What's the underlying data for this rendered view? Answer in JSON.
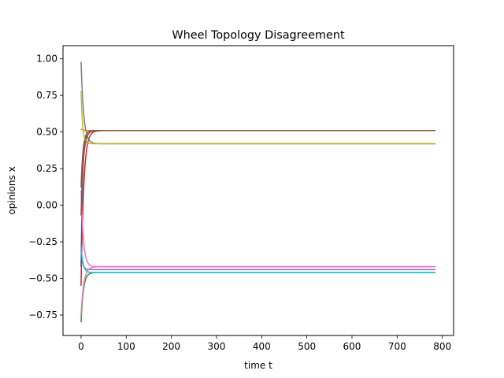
{
  "chart_data": {
    "type": "line",
    "title": "Wheel Topology Disagreement",
    "xlabel": "time t",
    "ylabel": "opinions x",
    "xlim": [
      -40,
      825
    ],
    "ylim": [
      -0.89,
      1.09
    ],
    "xticks": [
      0,
      100,
      200,
      300,
      400,
      500,
      600,
      700,
      800
    ],
    "yticks": [
      -0.75,
      -0.5,
      -0.25,
      0.0,
      0.25,
      0.5,
      0.75,
      1.0
    ],
    "xtick_labels": [
      "0",
      "100",
      "200",
      "300",
      "400",
      "500",
      "600",
      "700",
      "800"
    ],
    "ytick_labels": [
      "−0.75",
      "−0.50",
      "−0.25",
      "0.00",
      "0.25",
      "0.50",
      "0.75",
      "1.00"
    ],
    "grid": false,
    "t_end": 785,
    "series": [
      {
        "color": "#1f77b4",
        "start": -0.42,
        "final": 0.51
      },
      {
        "color": "#ff7f0e",
        "start": 0.52,
        "final": 0.51
      },
      {
        "color": "#2ca02c",
        "start": -0.8,
        "final": -0.46
      },
      {
        "color": "#d62728",
        "start": -0.55,
        "final": 0.51
      },
      {
        "color": "#9467bd",
        "start": -0.3,
        "final": -0.44
      },
      {
        "color": "#8c564b",
        "start": 0.12,
        "final": 0.51
      },
      {
        "color": "#e377c2",
        "start": 0.1,
        "final": -0.42
      },
      {
        "color": "#7f7f7f",
        "start": 0.98,
        "final": 0.42
      },
      {
        "color": "#bcbd22",
        "start": 0.78,
        "final": 0.42
      },
      {
        "color": "#17becf",
        "start": -0.28,
        "final": -0.46
      },
      {
        "color": "#8c564b",
        "start": -0.07,
        "final": 0.51
      },
      {
        "color": "#e377c2",
        "start": -0.75,
        "final": -0.42
      }
    ]
  }
}
